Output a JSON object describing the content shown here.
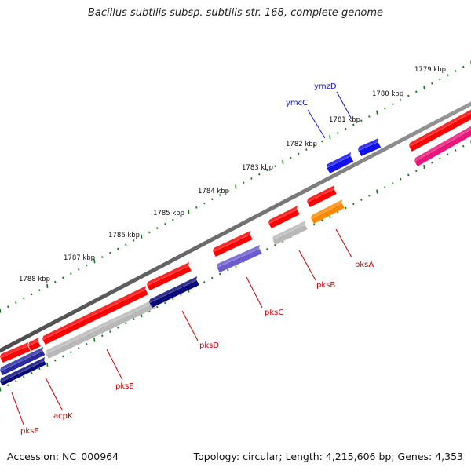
{
  "title": "Bacillus subtilis subsp. subtilis str. 168, complete genome",
  "accession": "Accession: NC_000964",
  "stats": "Topology: circular; Length: 4,215,606 bp; Genes: 4,353",
  "scale_labels": [
    "1779 kbp",
    "1780 kbp",
    "1781 kbp",
    "1782 kbp",
    "1783 kbp",
    "1784 kbp",
    "1785 kbp",
    "1786 kbp",
    "1787 kbp",
    "1788 kbp"
  ],
  "colors": {
    "backbone": "#7a7a7a",
    "forward_cds": "#ff0000",
    "ruler_dots": "#1a7a1a",
    "label_forward": "#1111cc",
    "label_reverse": "#cc0000"
  },
  "forward_genes": [
    {
      "name": "ymcC",
      "color": "#1111ee"
    },
    {
      "name": "ymzD",
      "color": "#1111ee"
    }
  ],
  "reverse_genes": [
    {
      "name": "pksA",
      "color": "#ff8800"
    },
    {
      "name": "pksB",
      "color": "#b8b8b8"
    },
    {
      "name": "pksC",
      "color": "#6a5acd"
    },
    {
      "name": "pksD",
      "color": "#0a0a7a"
    },
    {
      "name": "pksE",
      "color": "#b8b8b8"
    },
    {
      "name": "acpK",
      "color": "#2a2aa0"
    },
    {
      "name": "pksF",
      "color": "#0a0a7a"
    }
  ]
}
